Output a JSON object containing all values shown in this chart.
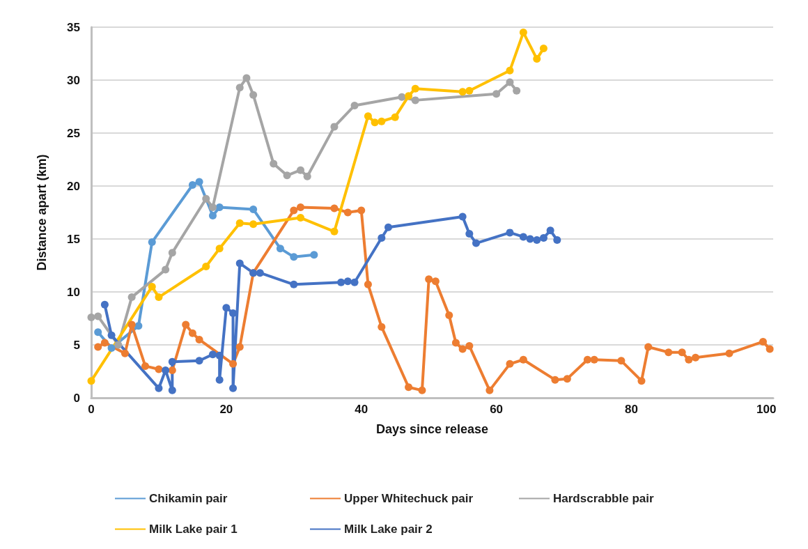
{
  "chart_data": {
    "type": "line",
    "xlabel": "Days since release",
    "ylabel": "Distance apart (km)",
    "xlim": [
      0,
      101
    ],
    "xticks": [
      0,
      20,
      40,
      60,
      80,
      100
    ],
    "ylim": [
      0,
      35
    ],
    "yticks": [
      0,
      5,
      10,
      15,
      20,
      25,
      30,
      35
    ],
    "grid": "y",
    "legend": "bottom",
    "marker": "circle",
    "line_style": "solid",
    "series": [
      {
        "name": "Chikamin pair",
        "color": "#5b9bd5",
        "x": [
          1,
          3,
          7,
          9,
          15,
          16,
          18,
          19,
          24,
          28,
          30,
          33
        ],
        "values": [
          6.2,
          4.7,
          6.8,
          14.7,
          20.1,
          20.4,
          17.2,
          18.0,
          17.8,
          14.1,
          13.3,
          13.5
        ]
      },
      {
        "name": "Upper Whitechuck pair",
        "color": "#ed7d31",
        "x": [
          1,
          2,
          5,
          6,
          8,
          10,
          12,
          14,
          15,
          16,
          21,
          22,
          24,
          30,
          31,
          36,
          38,
          40,
          41,
          43,
          47,
          49,
          50,
          51,
          53,
          54,
          55,
          56,
          59,
          62,
          64,
          68.7,
          70.5,
          73.5,
          74.5,
          78.5,
          81.5,
          82.5,
          85.5,
          87.5,
          88.5,
          89.5,
          94.5,
          99.5,
          100.5
        ],
        "values": [
          4.8,
          5.2,
          4.2,
          6.9,
          3.0,
          2.7,
          2.6,
          6.9,
          6.1,
          5.5,
          3.2,
          4.8,
          11.8,
          17.7,
          18.0,
          17.9,
          17.5,
          17.7,
          10.7,
          6.7,
          1.0,
          0.7,
          11.2,
          11.0,
          7.8,
          5.2,
          4.6,
          4.9,
          0.7,
          3.2,
          3.6,
          1.7,
          1.8,
          3.6,
          3.6,
          3.5,
          1.6,
          4.8,
          4.3,
          4.3,
          3.6,
          3.8,
          4.2,
          5.3,
          4.6
        ]
      },
      {
        "name": "Hardscrabble pair",
        "color": "#a5a5a5",
        "x": [
          0,
          1,
          4,
          6,
          11,
          12,
          17,
          18,
          22,
          23,
          24,
          27,
          29,
          31,
          32,
          36,
          39,
          46,
          48,
          60,
          62,
          63
        ],
        "values": [
          7.6,
          7.7,
          5.0,
          9.5,
          12.1,
          13.7,
          18.8,
          18.0,
          29.3,
          30.2,
          28.6,
          22.1,
          21.0,
          21.5,
          20.9,
          25.6,
          27.6,
          28.4,
          28.1,
          28.7,
          29.8,
          29.0
        ]
      },
      {
        "name": "Milk Lake pair 1",
        "color": "#ffc000",
        "x": [
          0,
          9,
          10,
          17,
          19,
          22,
          24,
          31,
          36,
          41,
          42,
          43,
          45,
          47,
          48,
          55,
          56,
          62,
          64,
          66,
          67
        ],
        "values": [
          1.6,
          10.5,
          9.5,
          12.4,
          14.1,
          16.5,
          16.4,
          17.0,
          15.7,
          26.6,
          26.0,
          26.1,
          26.5,
          28.5,
          29.2,
          28.9,
          29.0,
          30.9,
          34.5,
          32.0,
          33.0
        ]
      },
      {
        "name": "Milk Lake pair 2",
        "color": "#4472c4",
        "x": [
          2,
          3,
          10,
          11,
          12,
          12,
          16,
          18,
          19,
          19,
          20,
          21,
          21,
          22,
          24,
          25,
          30,
          37,
          38,
          39,
          43,
          44,
          55,
          56,
          57,
          62,
          64,
          65,
          66,
          67,
          68,
          69
        ],
        "values": [
          8.8,
          5.9,
          0.9,
          2.6,
          0.7,
          3.4,
          3.5,
          4.1,
          4.0,
          1.7,
          8.5,
          8.0,
          0.9,
          12.7,
          11.8,
          11.8,
          10.7,
          10.9,
          11.0,
          10.9,
          15.1,
          16.1,
          17.1,
          15.5,
          14.6,
          15.6,
          15.2,
          15.0,
          14.9,
          15.1,
          15.8,
          14.9
        ]
      }
    ]
  }
}
